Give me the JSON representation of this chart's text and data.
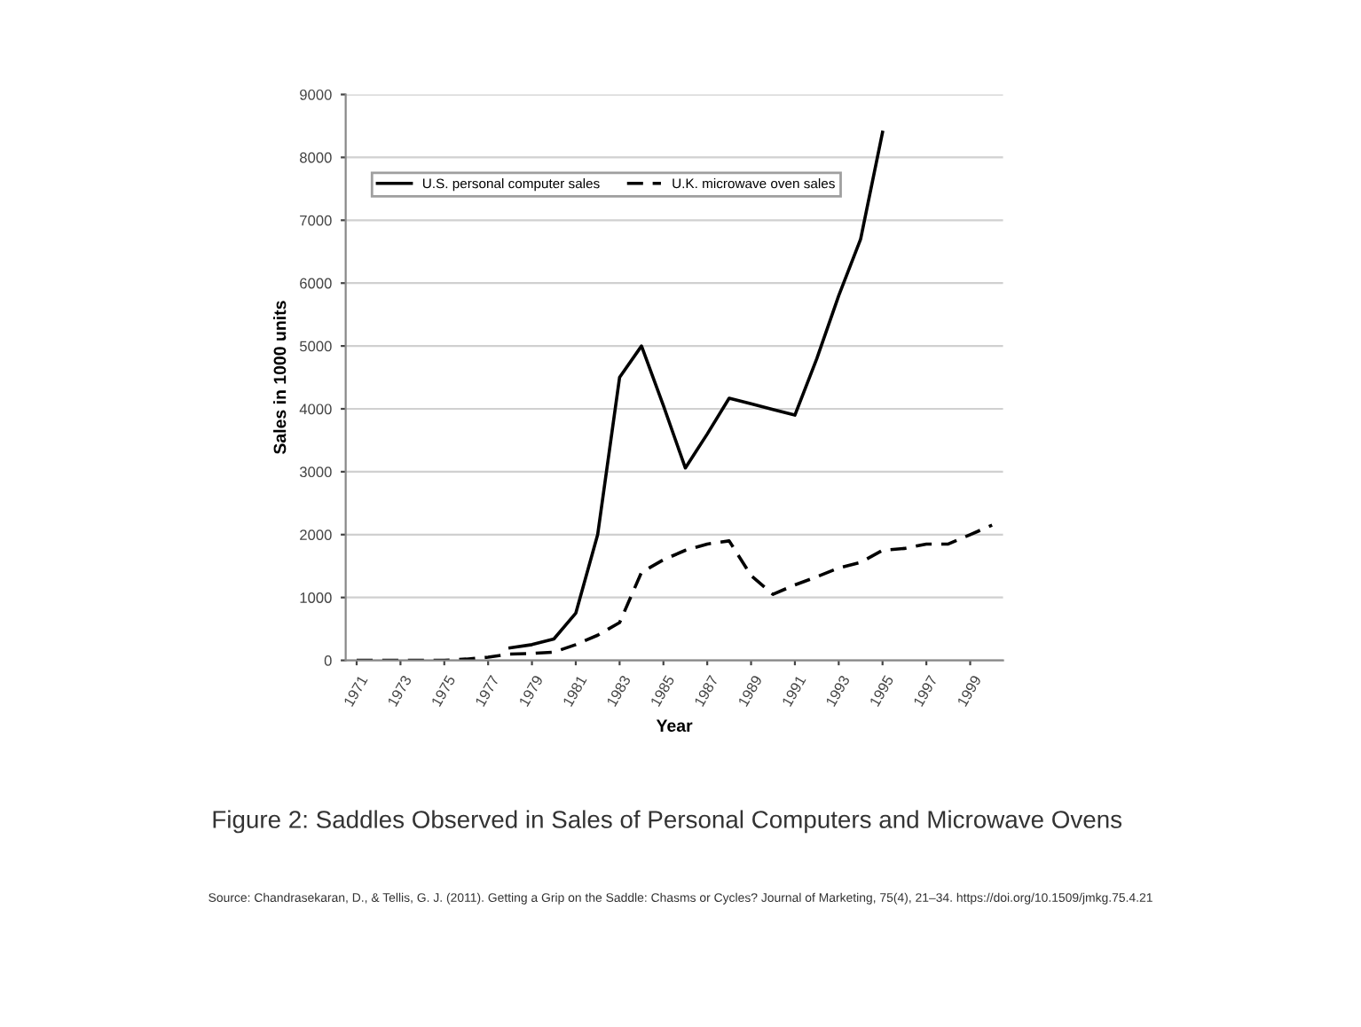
{
  "chart_data": {
    "type": "line",
    "xlabel": "Year",
    "ylabel": "Sales in 1000 units",
    "x": [
      1971,
      1972,
      1973,
      1974,
      1975,
      1976,
      1977,
      1978,
      1979,
      1980,
      1981,
      1982,
      1983,
      1984,
      1985,
      1986,
      1987,
      1988,
      1989,
      1990,
      1991,
      1992,
      1993,
      1994,
      1995,
      1996,
      1997,
      1998,
      1999,
      2000
    ],
    "series": [
      {
        "name": "U.S. personal computer sales",
        "color": "#000000",
        "line_style": "solid",
        "values": [
          null,
          null,
          null,
          null,
          null,
          null,
          null,
          200,
          250,
          340,
          750,
          2000,
          4500,
          5000,
          4050,
          3060,
          3600,
          4170,
          4080,
          3990,
          3900,
          4800,
          5800,
          6700,
          8400,
          null,
          null,
          null,
          null,
          null
        ]
      },
      {
        "name": "U.K. microwave oven sales",
        "color": "#000000",
        "line_style": "dashed",
        "values": [
          0,
          0,
          0,
          0,
          0,
          20,
          50,
          100,
          110,
          130,
          250,
          400,
          600,
          1400,
          1600,
          1750,
          1850,
          1900,
          1350,
          1050,
          1200,
          1330,
          1470,
          1560,
          1750,
          1780,
          1850,
          1850,
          2000,
          2150
        ]
      }
    ],
    "xlim": [
      1970.5,
      2000.5
    ],
    "xticks": [
      1971,
      1973,
      1975,
      1977,
      1979,
      1981,
      1983,
      1985,
      1987,
      1989,
      1991,
      1993,
      1995,
      1997,
      1999
    ],
    "ylim": [
      0,
      9000
    ],
    "yticks": [
      0,
      1000,
      2000,
      3000,
      4000,
      5000,
      6000,
      7000,
      8000,
      9000
    ],
    "grid": "y",
    "legend": "top left",
    "marker": "none",
    "annotations": [
      "Figure 2: Saddles Observed in Sales of Personal Computers and Microwave Ovens",
      "Source: Chandrasekaran, D., & Tellis, G. J. (2011). Getting a Grip on the Saddle: Chasms or Cycles? Journal of Marketing, 75(4), 21–34. https://doi.org/10.1509/jmkg.75.4.21"
    ]
  }
}
